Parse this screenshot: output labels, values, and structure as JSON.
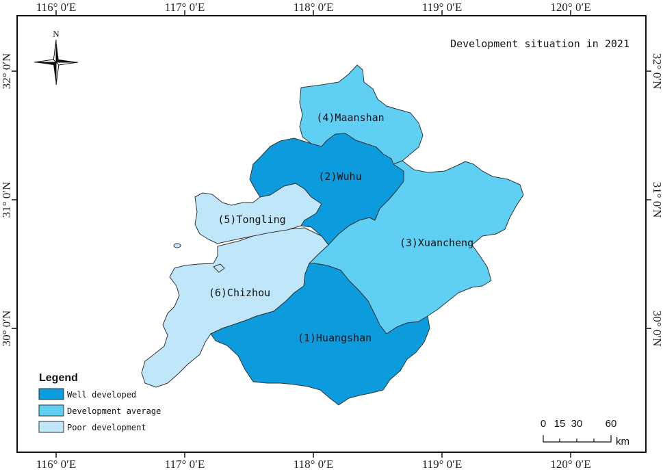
{
  "title": "Development situation in 2021",
  "colors": {
    "well_developed": "#0c9bdc",
    "development_average": "#5fcff3",
    "poor_development": "#bfe6f9"
  },
  "grid": {
    "lon_labels": [
      "116° 0′E",
      "117° 0′E",
      "118° 0′E",
      "119° 0′E",
      "120° 0′E"
    ],
    "lat_labels": [
      "32° 0′N",
      "31° 0′N",
      "30° 0′N"
    ]
  },
  "north_arrow": {
    "label": "N",
    "icon": "compass-rose-icon"
  },
  "regions": [
    {
      "id": "huangshan",
      "label": "(1)Huangshan",
      "category": "well_developed"
    },
    {
      "id": "wuhu",
      "label": "(2)Wuhu",
      "category": "well_developed"
    },
    {
      "id": "xuancheng",
      "label": "(3)Xuancheng",
      "category": "development_average"
    },
    {
      "id": "maanshan",
      "label": "(4)Maanshan",
      "category": "development_average"
    },
    {
      "id": "tongling",
      "label": "(5)Tongling",
      "category": "poor_development"
    },
    {
      "id": "chizhou",
      "label": "(6)Chizhou",
      "category": "poor_development"
    }
  ],
  "legend": {
    "title": "Legend",
    "items": [
      {
        "label": "Well developed",
        "category": "well_developed"
      },
      {
        "label": "Development average",
        "category": "development_average"
      },
      {
        "label": "Poor development",
        "category": "poor_development"
      }
    ]
  },
  "scale_bar": {
    "ticks": [
      "0",
      "15",
      "30",
      "60"
    ],
    "unit": "km"
  }
}
